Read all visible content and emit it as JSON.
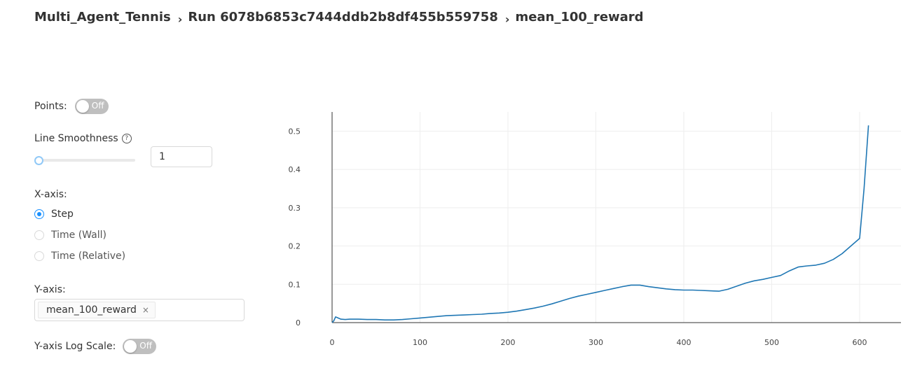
{
  "breadcrumb": {
    "project": "Multi_Agent_Tennis",
    "run": "Run 6078b6853c7444ddb2b8df455b559758",
    "metric": "mean_100_reward",
    "separator": "›"
  },
  "controls": {
    "points_label": "Points:",
    "points_toggle": "Off",
    "smoothness_label": "Line Smoothness",
    "smoothness_help_icon": "question-circle-icon",
    "smoothness_value": "1",
    "smoothness_slider_fraction": 0,
    "xaxis_label": "X-axis:",
    "xaxis_options": [
      {
        "label": "Step",
        "checked": true
      },
      {
        "label": "Time (Wall)",
        "checked": false
      },
      {
        "label": "Time (Relative)",
        "checked": false
      }
    ],
    "yaxis_label": "Y-axis:",
    "yaxis_tag": "mean_100_reward",
    "yaxis_tag_remove": "×",
    "ylog_label": "Y-axis Log Scale:",
    "ylog_toggle": "Off"
  },
  "colors": {
    "accent": "#1890ff",
    "line": "#1f77b4",
    "toggle_off": "#bfbfbf",
    "grid": "#eeeeee"
  },
  "chart_data": {
    "type": "line",
    "xlim": [
      0,
      647
    ],
    "ylim": [
      0,
      0.55
    ],
    "xticks": [
      "0",
      "100",
      "200",
      "300",
      "400",
      "500",
      "600"
    ],
    "yticks": [
      "0",
      "0.1",
      "0.2",
      "0.3",
      "0.4",
      "0.5"
    ],
    "grid": true,
    "series": [
      {
        "x": [
          0,
          2,
          4,
          6,
          8,
          10,
          15,
          20,
          30,
          40,
          50,
          60,
          70,
          80,
          90,
          100,
          110,
          120,
          130,
          140,
          150,
          160,
          170,
          180,
          190,
          200,
          210,
          220,
          230,
          240,
          250,
          260,
          270,
          280,
          290,
          300,
          310,
          320,
          330,
          340,
          350,
          360,
          370,
          380,
          390,
          400,
          410,
          420,
          430,
          440,
          450,
          460,
          470,
          480,
          490,
          500,
          510,
          520,
          530,
          540,
          550,
          560,
          570,
          580,
          590,
          600,
          605,
          610
        ],
        "y": [
          0,
          0.005,
          0.015,
          0.013,
          0.011,
          0.009,
          0.008,
          0.009,
          0.009,
          0.008,
          0.008,
          0.007,
          0.007,
          0.008,
          0.01,
          0.012,
          0.014,
          0.016,
          0.018,
          0.019,
          0.02,
          0.021,
          0.022,
          0.024,
          0.025,
          0.027,
          0.03,
          0.034,
          0.038,
          0.043,
          0.049,
          0.056,
          0.063,
          0.069,
          0.074,
          0.079,
          0.084,
          0.089,
          0.094,
          0.098,
          0.098,
          0.094,
          0.091,
          0.088,
          0.086,
          0.085,
          0.085,
          0.084,
          0.083,
          0.082,
          0.087,
          0.095,
          0.103,
          0.109,
          0.113,
          0.118,
          0.123,
          0.135,
          0.145,
          0.148,
          0.15,
          0.155,
          0.165,
          0.18,
          0.2,
          0.22,
          0.35,
          0.515
        ]
      }
    ]
  }
}
